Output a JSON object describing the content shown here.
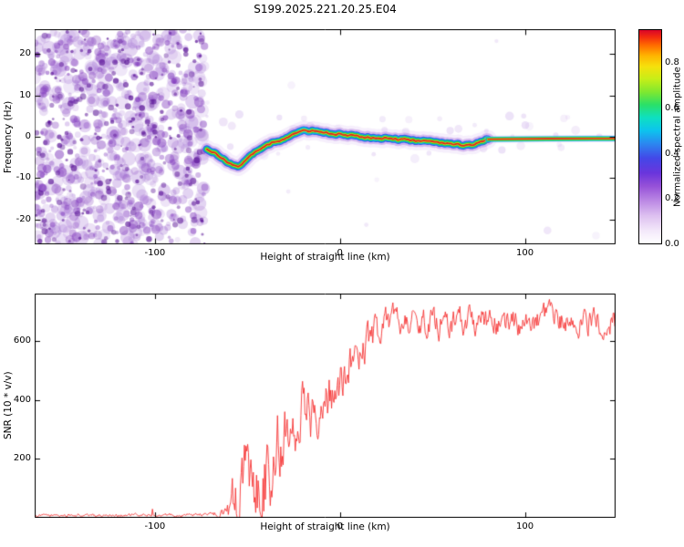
{
  "title": "S199.2025.221.20.25.E04",
  "colorbar": {
    "label": "Normalized spectral amplitude",
    "ticks": [
      0.0,
      0.2,
      0.4,
      0.6,
      0.8
    ],
    "max": 0.95,
    "gradient": [
      [
        0.0,
        "#ffffff"
      ],
      [
        0.06,
        "#f3e8fa"
      ],
      [
        0.13,
        "#ddc0f0"
      ],
      [
        0.2,
        "#bb88e4"
      ],
      [
        0.27,
        "#9550d8"
      ],
      [
        0.33,
        "#6a35dc"
      ],
      [
        0.4,
        "#4348e8"
      ],
      [
        0.47,
        "#2a8af0"
      ],
      [
        0.53,
        "#0cc4ee"
      ],
      [
        0.59,
        "#0ee0c0"
      ],
      [
        0.65,
        "#2ae068"
      ],
      [
        0.71,
        "#7fe830"
      ],
      [
        0.77,
        "#c6ee18"
      ],
      [
        0.83,
        "#f6e00c"
      ],
      [
        0.88,
        "#ffb400"
      ],
      [
        0.93,
        "#ff6a00"
      ],
      [
        0.97,
        "#f22810"
      ],
      [
        1.0,
        "#d8052a"
      ]
    ]
  },
  "chart_data": [
    {
      "type": "heatmap",
      "title": "S199.2025.221.20.25.E04",
      "xlabel": "Height of straight line (km)",
      "ylabel": "Frequency (Hz)",
      "xlim": [
        -165,
        149
      ],
      "ylim": [
        -26,
        26
      ],
      "xticks": [
        -100,
        0,
        100
      ],
      "yticks": [
        -20,
        -10,
        0,
        10,
        20
      ],
      "noise_region_x": [
        -165,
        -73
      ],
      "noise_color_range": [
        "#d9c2ee",
        "#5b21a8"
      ],
      "trace": [
        [
          -72,
          -3.0
        ],
        [
          -69,
          -3.6
        ],
        [
          -66,
          -4.4
        ],
        [
          -63,
          -5.4
        ],
        [
          -60,
          -6.4
        ],
        [
          -57,
          -7.1
        ],
        [
          -55,
          -7.3
        ],
        [
          -53,
          -6.6
        ],
        [
          -51,
          -5.6
        ],
        [
          -49,
          -4.6
        ],
        [
          -47,
          -4.0
        ],
        [
          -45,
          -3.6
        ],
        [
          -43,
          -2.9
        ],
        [
          -41,
          -2.5
        ],
        [
          -39,
          -2.0
        ],
        [
          -37,
          -1.5
        ],
        [
          -35,
          -1.1
        ],
        [
          -33,
          -1.2
        ],
        [
          -31,
          -0.7
        ],
        [
          -29,
          -0.2
        ],
        [
          -27,
          0.3
        ],
        [
          -25,
          0.6
        ],
        [
          -23,
          1.0
        ],
        [
          -21,
          1.3
        ],
        [
          -19,
          1.5
        ],
        [
          -17,
          1.4
        ],
        [
          -15,
          1.5
        ],
        [
          -13,
          1.3
        ],
        [
          -11,
          1.1
        ],
        [
          -9,
          0.9
        ],
        [
          -7,
          1.0
        ],
        [
          -5,
          0.7
        ],
        [
          -3,
          0.6
        ],
        [
          -1,
          0.6
        ],
        [
          2,
          0.4
        ],
        [
          5,
          0.3
        ],
        [
          8,
          0.4
        ],
        [
          11,
          0.1
        ],
        [
          14,
          -0.1
        ],
        [
          17,
          -0.2
        ],
        [
          20,
          -0.2
        ],
        [
          23,
          -0.4
        ],
        [
          26,
          -0.3
        ],
        [
          29,
          -0.5
        ],
        [
          32,
          -0.7
        ],
        [
          35,
          -0.6
        ],
        [
          38,
          -0.8
        ],
        [
          41,
          -0.9
        ],
        [
          44,
          -1.0
        ],
        [
          47,
          -0.9
        ],
        [
          50,
          -1.1
        ],
        [
          53,
          -1.3
        ],
        [
          56,
          -1.5
        ],
        [
          59,
          -1.7
        ],
        [
          62,
          -1.7
        ],
        [
          65,
          -1.9
        ],
        [
          68,
          -2.1
        ],
        [
          71,
          -1.9
        ],
        [
          74,
          -1.6
        ],
        [
          77,
          -1.0
        ],
        [
          80,
          -0.6
        ]
      ],
      "trace_flat": [
        [
          80,
          -0.6
        ],
        [
          100,
          -0.5
        ],
        [
          125,
          -0.45
        ],
        [
          149,
          -0.45
        ]
      ],
      "trace_layers": [
        {
          "color": "rgba(214,184,240,0.22)",
          "width": 20
        },
        {
          "color": "rgba(176,122,224,0.45)",
          "width": 13
        },
        {
          "color": "#3c50e8",
          "width": 8.5
        },
        {
          "color": "#00b8f0",
          "width": 6.5
        },
        {
          "color": "#16d83c",
          "width": 5.0
        },
        {
          "color": "#cce81a",
          "width": 3.2
        },
        {
          "color": "#e42020",
          "width": 1.8
        }
      ],
      "trace_flat_layers": [
        {
          "color": "rgba(190,150,235,0.28)",
          "width": 8
        },
        {
          "color": "#00b8f0",
          "width": 5.5
        },
        {
          "color": "#16d83c",
          "width": 4.0
        },
        {
          "color": "#cce81a",
          "width": 2.6
        },
        {
          "color": "#e42020",
          "width": 1.6
        }
      ]
    },
    {
      "type": "line",
      "series_color": "#f63434",
      "xlabel": "Height of straight line (km)",
      "ylabel": "SNR (10 * v/v)",
      "xlim": [
        -165,
        149
      ],
      "ylim": [
        0,
        760
      ],
      "xticks": [
        -100,
        0,
        100
      ],
      "yticks": [
        200,
        400,
        600
      ],
      "control_points": [
        [
          -165,
          8,
          5
        ],
        [
          -140,
          8,
          5
        ],
        [
          -120,
          9,
          5
        ],
        [
          -100,
          9,
          5
        ],
        [
          -85,
          10,
          6
        ],
        [
          -72,
          10,
          6
        ],
        [
          -65,
          14,
          10
        ],
        [
          -60,
          35,
          45
        ],
        [
          -56,
          110,
          130
        ],
        [
          -52,
          150,
          150
        ],
        [
          -48,
          90,
          90
        ],
        [
          -44,
          150,
          160
        ],
        [
          -40,
          190,
          170
        ],
        [
          -36,
          170,
          120
        ],
        [
          -32,
          300,
          130
        ],
        [
          -28,
          330,
          90
        ],
        [
          -24,
          330,
          100
        ],
        [
          -20,
          370,
          110
        ],
        [
          -16,
          350,
          90
        ],
        [
          -12,
          390,
          90
        ],
        [
          -8,
          420,
          80
        ],
        [
          -4,
          440,
          80
        ],
        [
          0,
          470,
          80
        ],
        [
          5,
          520,
          70
        ],
        [
          10,
          560,
          60
        ],
        [
          15,
          600,
          60
        ],
        [
          20,
          635,
          55
        ],
        [
          25,
          655,
          50
        ],
        [
          30,
          675,
          45
        ],
        [
          40,
          665,
          45
        ],
        [
          55,
          655,
          45
        ],
        [
          70,
          670,
          45
        ],
        [
          85,
          665,
          45
        ],
        [
          100,
          655,
          45
        ],
        [
          115,
          670,
          45
        ],
        [
          130,
          660,
          45
        ],
        [
          142,
          665,
          45
        ],
        [
          149,
          655,
          45
        ]
      ]
    }
  ]
}
